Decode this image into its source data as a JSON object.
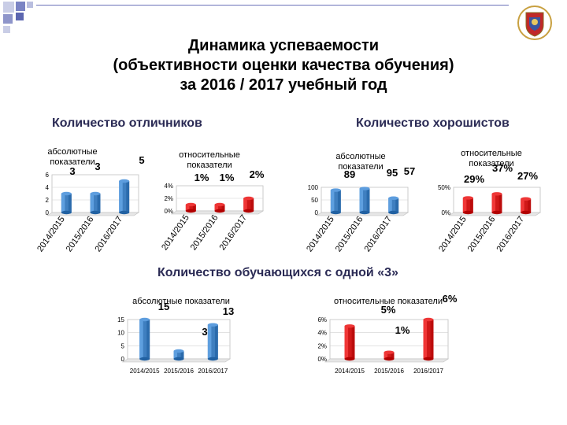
{
  "title_lines": [
    "Динамика успеваемости",
    "(объективности оценки качества обучения)",
    "за 2016 / 2017 учебный год"
  ],
  "sections": {
    "excellent": "Количество отличников",
    "good": "Количество хорошистов",
    "grade3": "Количество обучающихся с одной «3»"
  },
  "colors": {
    "blue": "#3f7fc0",
    "red": "#d01818",
    "heading": "#2b2b55"
  },
  "chart_data": [
    {
      "id": "excellent-abs",
      "type": "bar",
      "title": "абсолютные показатели",
      "categories": [
        "2014/2015",
        "2015/2016",
        "2016/2017"
      ],
      "values": [
        3,
        3,
        5
      ],
      "labels": [
        "3",
        "3",
        "5"
      ],
      "yticks": [
        "0",
        "2",
        "4",
        "6"
      ],
      "ylim": [
        0,
        6
      ],
      "color": "blue"
    },
    {
      "id": "excellent-rel",
      "type": "bar",
      "title": "относительные показатели",
      "categories": [
        "2014/2015",
        "2015/2016",
        "2016/2017"
      ],
      "values": [
        1,
        1,
        2
      ],
      "labels": [
        "1%",
        "1%",
        "2%"
      ],
      "yticks": [
        "0%",
        "2%",
        "4%"
      ],
      "ylim": [
        0,
        4
      ],
      "color": "red"
    },
    {
      "id": "good-abs",
      "type": "bar",
      "title": "абсолютные показатели",
      "categories": [
        "2014/2015",
        "2015/2016",
        "2016/2017"
      ],
      "values": [
        89,
        95,
        57
      ],
      "labels": [
        "89",
        "95",
        "57"
      ],
      "yticks": [
        "0",
        "50",
        "100"
      ],
      "ylim": [
        0,
        100
      ],
      "color": "blue"
    },
    {
      "id": "good-rel",
      "type": "bar",
      "title": "относительные показатели",
      "categories": [
        "2014/2015",
        "2015/2016",
        "2016/2017"
      ],
      "values": [
        29,
        37,
        27
      ],
      "labels": [
        "29%",
        "37%",
        "27%"
      ],
      "yticks": [
        "0%",
        "50%"
      ],
      "ylim": [
        0,
        50
      ],
      "color": "red"
    },
    {
      "id": "grade3-abs",
      "type": "bar",
      "title": "абсолютные показатели",
      "categories": [
        "2014/2015",
        "2015/2016",
        "2016/2017"
      ],
      "values": [
        15,
        3,
        13
      ],
      "labels": [
        "15",
        "3",
        "13"
      ],
      "yticks": [
        "0",
        "5",
        "10",
        "15"
      ],
      "ylim": [
        0,
        15
      ],
      "color": "blue"
    },
    {
      "id": "grade3-rel",
      "type": "bar",
      "title": "относительные показатели",
      "categories": [
        "2014/2015",
        "2015/2016",
        "2016/2017"
      ],
      "values": [
        5,
        1,
        6
      ],
      "labels": [
        "5%",
        "1%",
        "6%"
      ],
      "yticks": [
        "0%",
        "2%",
        "4%",
        "6%"
      ],
      "ylim": [
        0,
        6
      ],
      "color": "red"
    }
  ]
}
